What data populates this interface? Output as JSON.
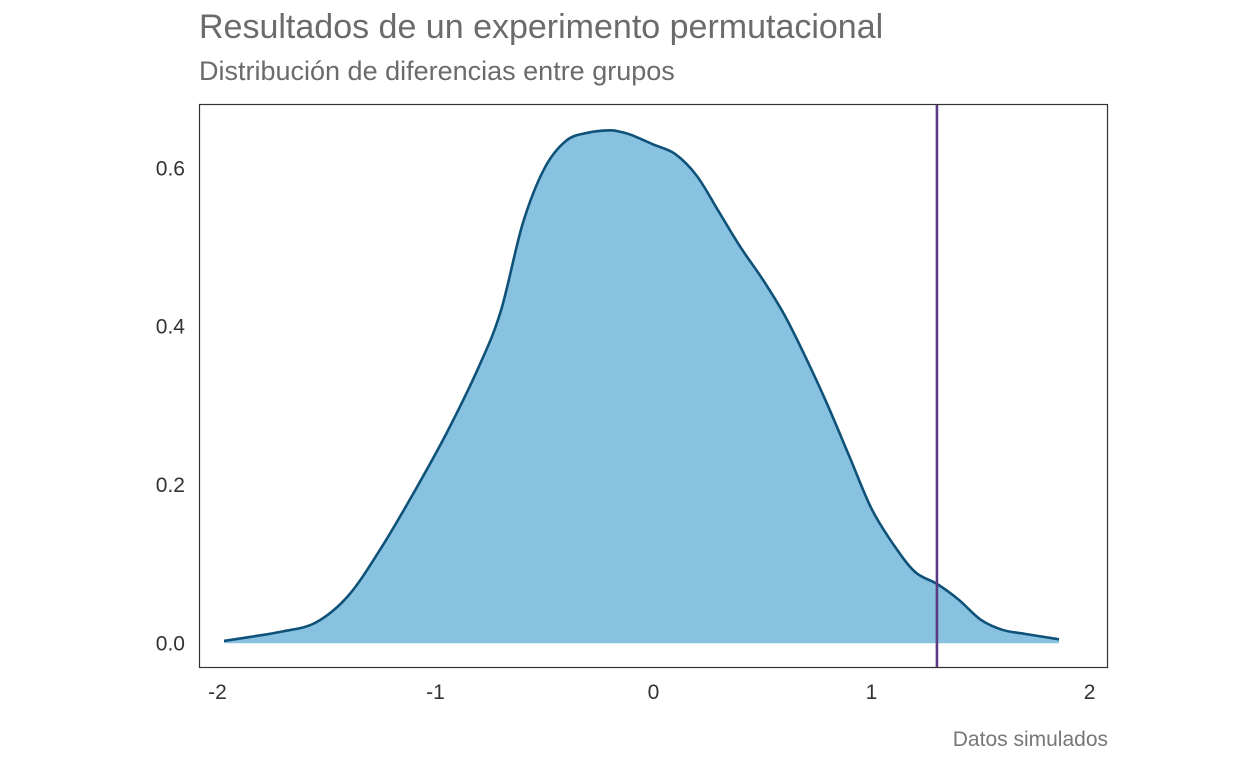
{
  "chart_data": {
    "type": "area",
    "title": "Resultados de un experimento permutacional",
    "subtitle": "Distribución de diferencias entre grupos",
    "caption": "Datos simulados",
    "xlabel": "",
    "ylabel": "",
    "xlim": [
      -2.08,
      2.08
    ],
    "ylim": [
      -0.03,
      0.68
    ],
    "x_ticks": [
      -2,
      -1,
      0,
      1,
      2
    ],
    "x_tick_labels": [
      "-2",
      "-1",
      "0",
      "1",
      "2"
    ],
    "y_ticks": [
      0.0,
      0.2,
      0.4,
      0.6
    ],
    "y_tick_labels": [
      "0.0",
      "0.2",
      "0.4",
      "0.6"
    ],
    "grid": false,
    "legend": "none",
    "series": [
      {
        "x": [
          -1.97,
          -1.85,
          -1.7,
          -1.55,
          -1.4,
          -1.25,
          -1.1,
          -0.95,
          -0.8,
          -0.7,
          -0.6,
          -0.5,
          -0.4,
          -0.3,
          -0.2,
          -0.15,
          -0.1,
          0.0,
          0.1,
          0.2,
          0.3,
          0.4,
          0.5,
          0.6,
          0.7,
          0.8,
          0.9,
          1.0,
          1.1,
          1.2,
          1.3,
          1.4,
          1.5,
          1.6,
          1.7,
          1.86
        ],
        "y": [
          0.003,
          0.008,
          0.015,
          0.026,
          0.06,
          0.12,
          0.19,
          0.265,
          0.35,
          0.42,
          0.53,
          0.6,
          0.635,
          0.645,
          0.648,
          0.646,
          0.642,
          0.63,
          0.618,
          0.59,
          0.545,
          0.5,
          0.46,
          0.415,
          0.36,
          0.3,
          0.235,
          0.17,
          0.125,
          0.09,
          0.075,
          0.055,
          0.03,
          0.017,
          0.012,
          0.005
        ]
      }
    ],
    "reference_line": {
      "x": 1.3,
      "orientation": "vertical"
    },
    "colors": {
      "fill": "#89c2e0",
      "line": "#0f5279",
      "reference": "#5a3a82",
      "frame": "#333333"
    }
  }
}
